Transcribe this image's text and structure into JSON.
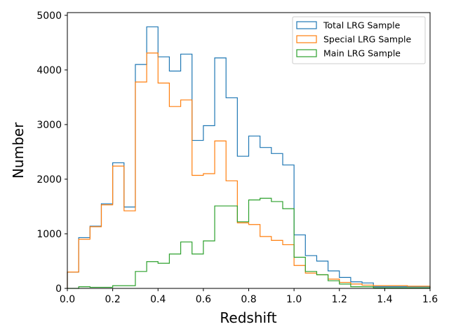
{
  "chart_data": {
    "type": "histogram-step",
    "title": "",
    "xlabel": "Redshift",
    "ylabel": "Number",
    "xlim": [
      0.0,
      1.6
    ],
    "ylim": [
      0,
      5050
    ],
    "xticks": [
      0.0,
      0.2,
      0.4,
      0.6,
      0.8,
      1.0,
      1.2,
      1.4,
      1.6
    ],
    "xtick_labels": [
      "0.0",
      "0.2",
      "0.4",
      "0.6",
      "0.8",
      "1.0",
      "1.2",
      "1.4",
      "1.6"
    ],
    "yticks": [
      0,
      1000,
      2000,
      3000,
      4000,
      5000
    ],
    "ytick_labels": [
      "0",
      "1000",
      "2000",
      "3000",
      "4000",
      "5000"
    ],
    "grid": false,
    "legend_position": "top-right",
    "bin_edges": [
      0.0,
      0.05,
      0.1,
      0.15,
      0.2,
      0.25,
      0.3,
      0.35,
      0.4,
      0.45,
      0.5,
      0.55,
      0.6,
      0.65,
      0.7,
      0.75,
      0.8,
      0.85,
      0.9,
      0.95,
      1.0,
      1.05,
      1.1,
      1.15,
      1.2,
      1.25,
      1.3,
      1.35,
      1.4,
      1.45,
      1.5,
      1.55,
      1.6
    ],
    "series": [
      {
        "name": "Total LRG Sample",
        "color": "#1f77b4",
        "values": [
          300,
          930,
          1140,
          1550,
          2300,
          1490,
          4100,
          4790,
          4240,
          3980,
          4290,
          2710,
          2980,
          4220,
          3490,
          2420,
          2790,
          2580,
          2470,
          2260,
          980,
          600,
          500,
          320,
          200,
          120,
          100,
          30,
          30,
          30,
          30,
          30
        ]
      },
      {
        "name": "Special LRG Sample",
        "color": "#ff7f0e",
        "values": [
          300,
          900,
          1130,
          1530,
          2240,
          1420,
          3780,
          4310,
          3760,
          3330,
          3450,
          2070,
          2100,
          2700,
          1970,
          1200,
          1170,
          950,
          880,
          800,
          420,
          280,
          250,
          170,
          110,
          80,
          60,
          50,
          50,
          50,
          40,
          40
        ]
      },
      {
        "name": "Main LRG Sample",
        "color": "#2ca02c",
        "values": [
          0,
          30,
          20,
          20,
          50,
          50,
          310,
          490,
          460,
          630,
          850,
          630,
          870,
          1510,
          1510,
          1220,
          1620,
          1650,
          1590,
          1460,
          570,
          310,
          250,
          140,
          80,
          30,
          30,
          10,
          10,
          10,
          10,
          10
        ]
      }
    ]
  }
}
